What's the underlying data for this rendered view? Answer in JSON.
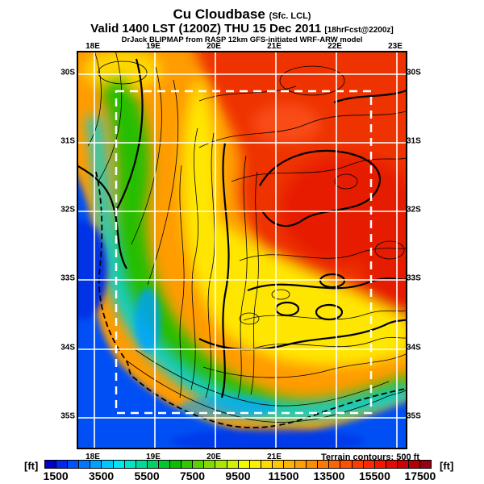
{
  "header": {
    "title": "Cu Cloudbase",
    "title_suffix": "(Sfc. LCL)",
    "valid_main": "Valid 1400 LST (1200Z) THU 15 Dec 2011",
    "valid_suffix": "[18hrFcst@2200z]",
    "model_line": "DrJack BLIPMAP from RASP 12km GFS-initiated WRF-ARW model"
  },
  "map": {
    "lon_ticks_top": [
      "18E",
      "19E",
      "20E",
      "21E",
      "22E",
      "23E"
    ],
    "lon_ticks_bottom": [
      "18E",
      "19E",
      "20E",
      "21E"
    ],
    "lat_ticks_left": [
      "30S",
      "31S",
      "32S",
      "33S",
      "34S",
      "35S"
    ],
    "lat_ticks_right": [
      "30S",
      "31S",
      "32S",
      "33S",
      "34S",
      "35S"
    ],
    "terrain_note": "Terrain contours: 500 ft"
  },
  "colorbar": {
    "unit_left": "[ft]",
    "unit_right": "[ft]",
    "labels": [
      "1500",
      "3500",
      "5500",
      "7500",
      "9500",
      "11500",
      "13500",
      "15500",
      "17500"
    ],
    "min_ft": 1000,
    "max_ft": 18000,
    "step_ft": 500,
    "palette": [
      "#0000C8",
      "#0028F0",
      "#0050FF",
      "#0078FF",
      "#00A0FF",
      "#00C8FF",
      "#00E6F0",
      "#00E6C8",
      "#00DC96",
      "#00D264",
      "#00C832",
      "#0ABE00",
      "#32C800",
      "#5AD200",
      "#82DC00",
      "#AAE600",
      "#D2F000",
      "#F0FA00",
      "#FFF000",
      "#FFDC00",
      "#FFC800",
      "#FFB400",
      "#FFA000",
      "#FF8C00",
      "#FF7800",
      "#FF6400",
      "#FF5000",
      "#FF3C00",
      "#FF2800",
      "#FA1400",
      "#E60A00",
      "#D20000",
      "#B40000",
      "#960014"
    ]
  },
  "map_colors": {
    "interior_orange": "#FF9C00",
    "high_red": "#EE3000",
    "core_red": "#E61E00",
    "light_red_patch": "#FF5A1E",
    "central_yellow": "#FFE600",
    "coastal_green": "#28BE00",
    "cyan_fringe": "#00D2DC",
    "ocean_blue": "#0050F5",
    "deep_blue": "#0032E6",
    "near_shore_blue": "#00A0FF",
    "grid_white": "#FFFFFF",
    "contour_black": "#000000"
  },
  "chart_data": {
    "type": "heatmap",
    "title": "Cu Cloudbase (Sfc. LCL)",
    "units": "ft",
    "valid": "1400 LST (1200Z) THU 15 Dec 2011",
    "forecast_tag": "[18hrFcst@2200z]",
    "model": "DrJack BLIPMAP from RASP 12km GFS-initiated WRF-ARW model",
    "x_axis": {
      "label": "longitude",
      "ticks": [
        "18E",
        "19E",
        "20E",
        "21E",
        "22E",
        "23E"
      ]
    },
    "y_axis": {
      "label": "latitude",
      "ticks": [
        "30S",
        "31S",
        "32S",
        "33S",
        "34S",
        "35S"
      ]
    },
    "scale_ft": {
      "min": 1000,
      "max": 18000,
      "step": 500
    },
    "regions": [
      {
        "area": "northeast interior 21E-23E / 30S-32S",
        "cloudbase_ft": 14000
      },
      {
        "area": "north-central 19.5E-21E / 30S-31S",
        "cloudbase_ft": 11500
      },
      {
        "area": "central plateau 20E-21.5E / 32S-33.5S",
        "cloudbase_ft": 9500
      },
      {
        "area": "western escarpment band 18.7E-19.3E / 30.5S-33.5S",
        "cloudbase_ft": 6500
      },
      {
        "area": "south coastal strip 19E-22E / 33.5S-34.3S",
        "cloudbase_ft": 5000
      },
      {
        "area": "west coast ocean 18E / 31.5S-35S",
        "cloudbase_ft": 2500
      },
      {
        "area": "southern ocean 33.8S-35.5S",
        "cloudbase_ft": 2000
      }
    ],
    "overlays": [
      "terrain contours every 500 ft (black)",
      "1-degree white lat/lon grid",
      "white dashed inner model domain rectangle",
      "black dashed coastline"
    ]
  }
}
